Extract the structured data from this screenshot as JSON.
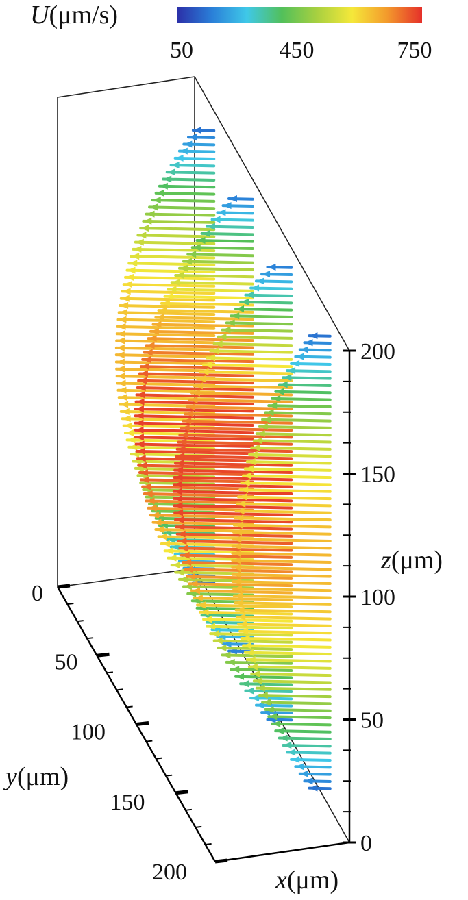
{
  "chart_data": {
    "type": "scatter",
    "colorbar": {
      "variable": "U",
      "unit": "(μm/s)",
      "tick_labels": [
        "50",
        "450",
        "750"
      ],
      "range": [
        50,
        750
      ],
      "colors": [
        "#2b2fa8",
        "#2a7fd8",
        "#3fc8e8",
        "#52c05a",
        "#a8d040",
        "#f5e83a",
        "#f39a2c",
        "#e5302a"
      ]
    },
    "axes": {
      "x": {
        "variable": "x",
        "unit": "(μm)"
      },
      "y": {
        "variable": "y",
        "unit": "(μm)",
        "range": [
          0,
          200
        ],
        "ticks": [
          0,
          50,
          100,
          150,
          200
        ],
        "tick_labels": [
          "0",
          "50",
          "100",
          "150",
          "200"
        ]
      },
      "z": {
        "variable": "z",
        "unit": "(μm)",
        "range": [
          0,
          200
        ],
        "ticks": [
          0,
          50,
          100,
          150,
          200
        ],
        "tick_labels": [
          "0",
          "50",
          "100",
          "150",
          "200"
        ]
      }
    },
    "grid": false,
    "legend": "colorbar top-right",
    "description_of_marks": "velocity vectors along x, colored by speed U",
    "profile": {
      "max_speed": 750,
      "min_speed": 50,
      "vector_rows": 65,
      "vectors_per_row": 4
    }
  }
}
